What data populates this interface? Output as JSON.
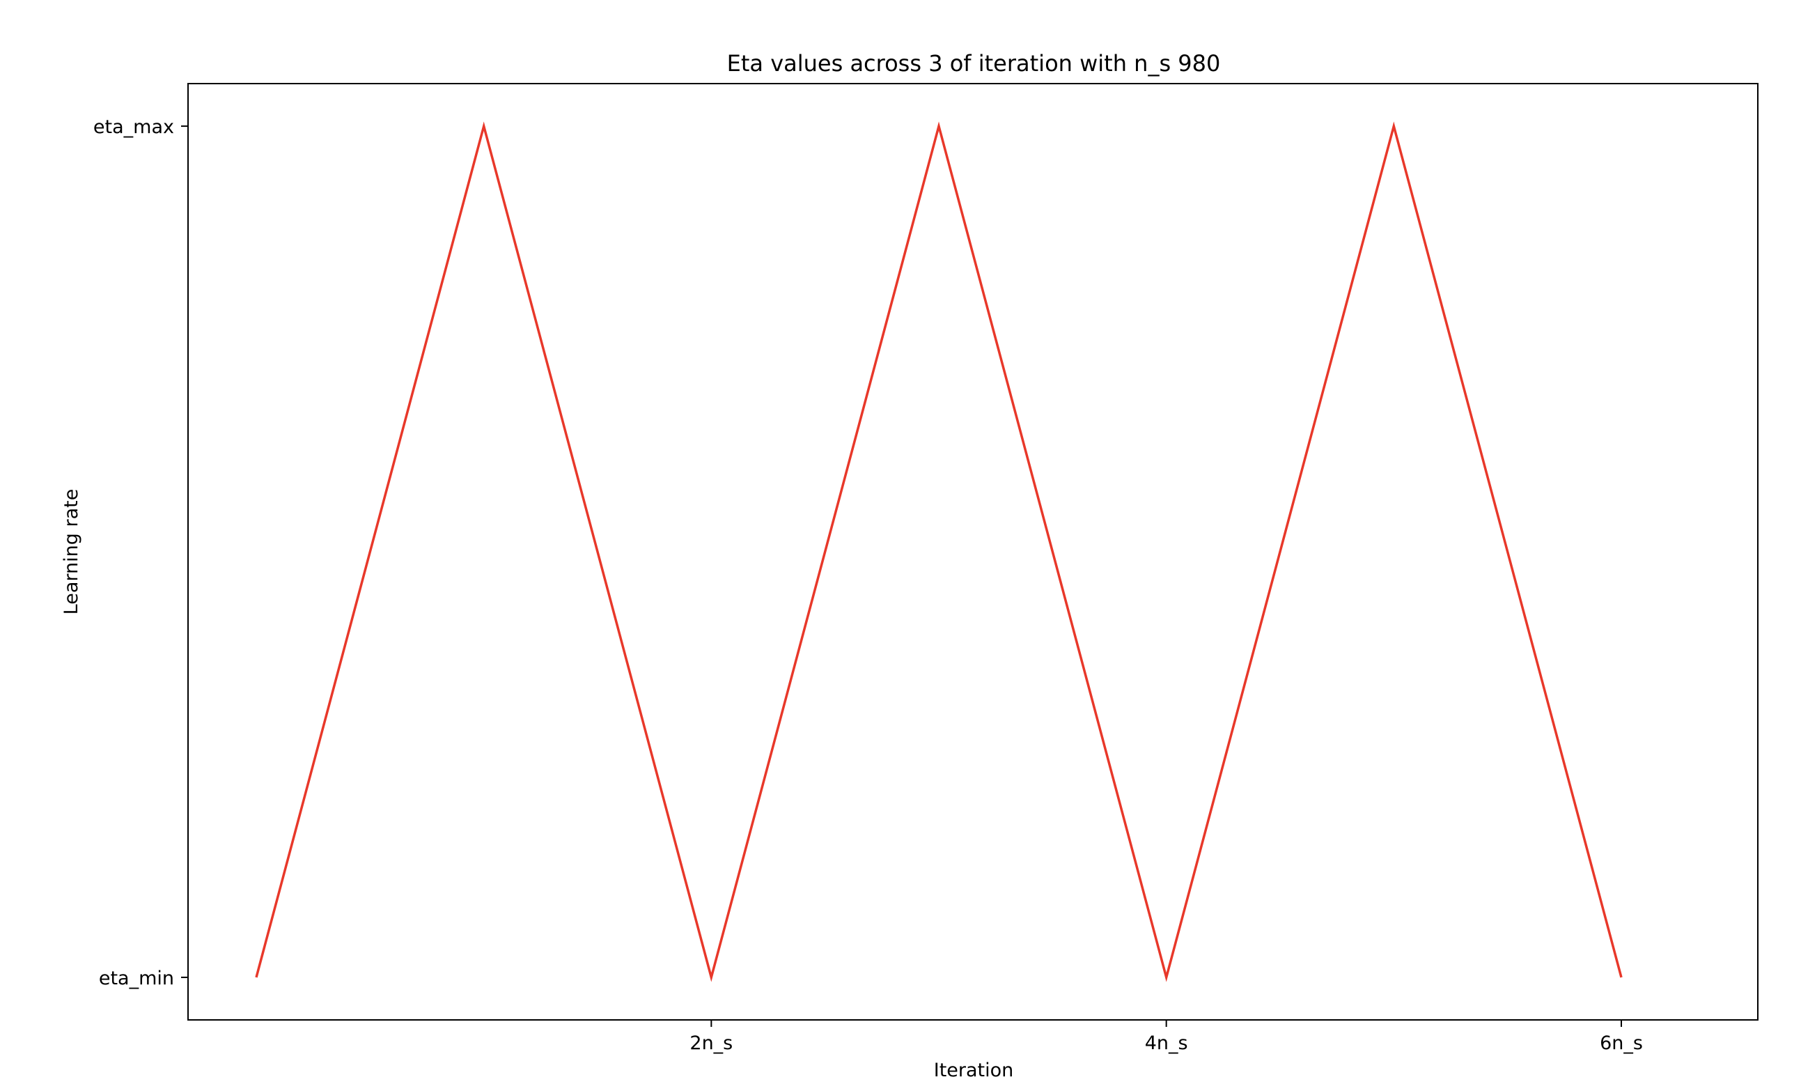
{
  "colors": {
    "series": "#e8382a",
    "axes": "#000000",
    "background": "#ffffff"
  },
  "chart_data": {
    "type": "line",
    "title": "Eta values across 3 of iteration with n_s  980",
    "xlabel": "Iteration",
    "ylabel": "Learning rate",
    "grid": false,
    "xlim": [
      -0.3,
      6.6
    ],
    "ylim": [
      -0.05,
      1.05
    ],
    "x_ticks": [
      {
        "value": 2,
        "label": "2n_s"
      },
      {
        "value": 4,
        "label": "4n_s"
      },
      {
        "value": 6,
        "label": "6n_s"
      }
    ],
    "y_ticks": [
      {
        "value": 0,
        "label": "eta_min"
      },
      {
        "value": 1,
        "label": "eta_max"
      }
    ],
    "series": [
      {
        "x": [
          0,
          1,
          2,
          3,
          4,
          5,
          6
        ],
        "y": [
          0,
          1,
          0,
          1,
          0,
          1,
          0
        ]
      }
    ]
  }
}
